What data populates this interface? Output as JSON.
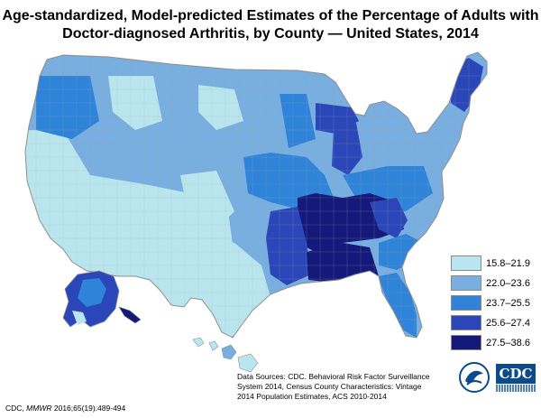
{
  "title": {
    "line1": "Age-standardized, Model-predicted Estimates of the Percentage of Adults with",
    "line2": "Doctor-diagnosed Arthritis, by County — United States, 2014"
  },
  "legend": {
    "items": [
      {
        "label": "15.8–21.9",
        "color": "#b9e6ee"
      },
      {
        "label": "22.0–23.6",
        "color": "#78aee0"
      },
      {
        "label": "23.7–25.5",
        "color": "#2f84d9"
      },
      {
        "label": "25.6–27.4",
        "color": "#2b46b8"
      },
      {
        "label": "27.5–38.6",
        "color": "#15197a"
      }
    ]
  },
  "sources": {
    "line1": "Data Sources: CDC. Behavioral Risk Factor Surveillance",
    "line2": "System 2014, Census County Characteristics: Vintage",
    "line3": "2014 Population Estimates, ACS 2010-2014"
  },
  "citation": {
    "org": "CDC,",
    "journal": "MMWR",
    "ref": "2016;65(19):489-494"
  },
  "logos": {
    "cdc_text": "CDC",
    "hhs_icon": "hhs-eagle-seal-icon"
  },
  "colors": {
    "state_border": "#8f8f8f",
    "county_border": "#a9a9a9"
  }
}
